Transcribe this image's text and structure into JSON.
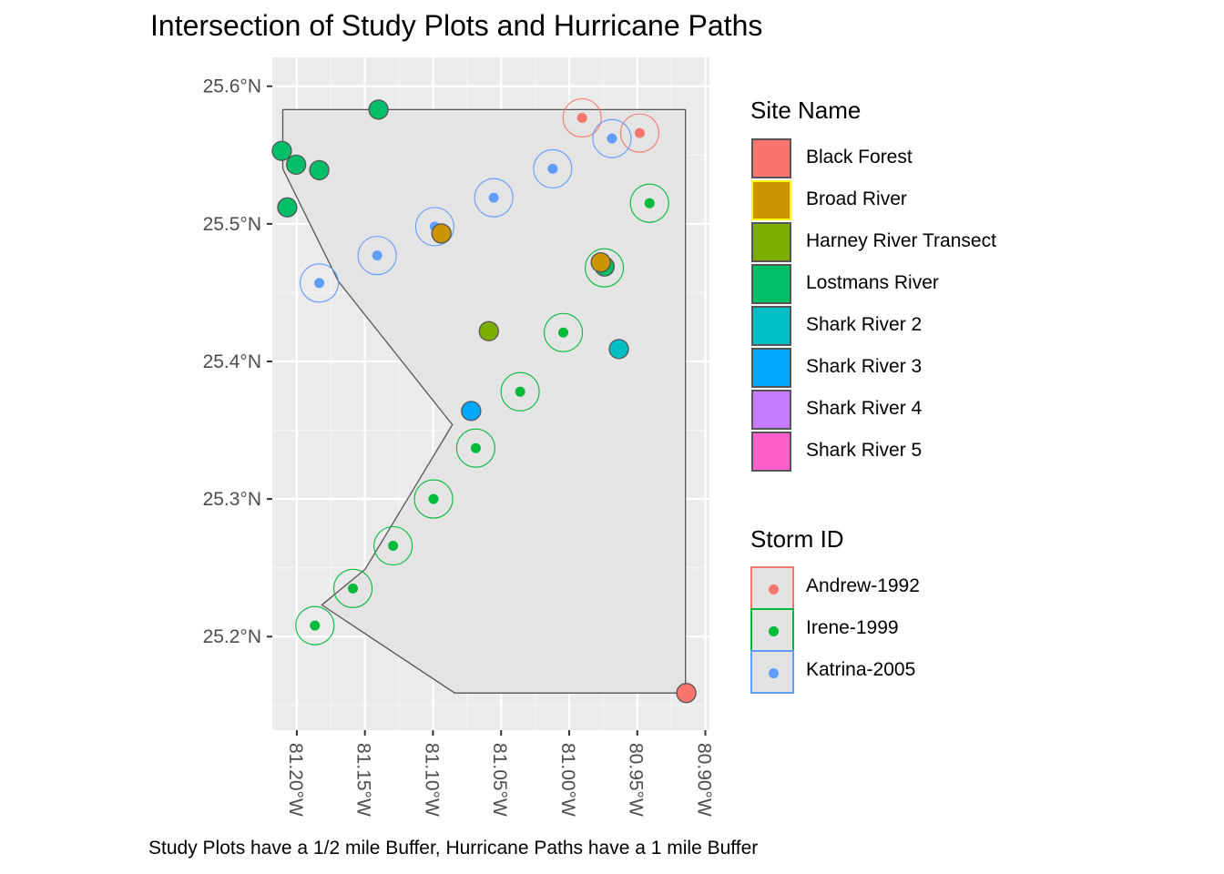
{
  "title": "Intersection of Study Plots and Hurricane Paths",
  "caption": "Study Plots have a 1/2 mile Buffer, Hurricane Paths have a 1 mile Buffer",
  "axes": {
    "x_ticks": [
      "81.20°W",
      "81.15°W",
      "81.10°W",
      "81.05°W",
      "81.00°W",
      "80.95°W",
      "80.90°W"
    ],
    "y_ticks": [
      "25.6°N",
      "25.5°N",
      "25.4°N",
      "25.3°N",
      "25.2°N"
    ]
  },
  "legend_site": {
    "title": "Site Name",
    "items": [
      {
        "label": "Black Forest",
        "color": "#F8766D"
      },
      {
        "label": "Broad River",
        "color": "#CD9600"
      },
      {
        "label": "Harney River Transect",
        "color": "#7CAE00"
      },
      {
        "label": "Lostmans River",
        "color": "#00BE67"
      },
      {
        "label": "Shark River 2",
        "color": "#00BFC4"
      },
      {
        "label": "Shark River 3",
        "color": "#00A9FF"
      },
      {
        "label": "Shark River 4",
        "color": "#C77CFF"
      },
      {
        "label": "Shark River 5",
        "color": "#FF61CC"
      }
    ]
  },
  "legend_storm": {
    "title": "Storm ID",
    "items": [
      {
        "label": "Andrew-1992",
        "color": "#F8766D"
      },
      {
        "label": "Irene-1999",
        "color": "#00BA38"
      },
      {
        "label": "Katrina-2005",
        "color": "#619CFF"
      }
    ]
  },
  "chart_data": {
    "type": "map",
    "xlim": [
      -81.218,
      -80.897
    ],
    "ylim": [
      25.132,
      25.621
    ],
    "grid": true,
    "region_polygon": [
      [
        -81.2103,
        25.583
      ],
      [
        -80.9146,
        25.583
      ],
      [
        -80.9146,
        25.159
      ],
      [
        -81.0841,
        25.159
      ],
      [
        -81.1816,
        25.223
      ],
      [
        -81.1498,
        25.249
      ],
      [
        -81.0858,
        25.354
      ],
      [
        -81.1694,
        25.458
      ],
      [
        -81.2103,
        25.54
      ]
    ],
    "storm_points": [
      {
        "storm": "Andrew-1992",
        "lon": -80.9905,
        "lat": 25.577
      },
      {
        "storm": "Andrew-1992",
        "lon": -80.9482,
        "lat": 25.566
      },
      {
        "storm": "Katrina-2005",
        "lon": -80.9686,
        "lat": 25.562
      },
      {
        "storm": "Katrina-2005",
        "lon": -81.0121,
        "lat": 25.54
      },
      {
        "storm": "Katrina-2005",
        "lon": -81.0554,
        "lat": 25.519
      },
      {
        "storm": "Katrina-2005",
        "lon": -81.0987,
        "lat": 25.498
      },
      {
        "storm": "Katrina-2005",
        "lon": -81.141,
        "lat": 25.477
      },
      {
        "storm": "Katrina-2005",
        "lon": -81.1835,
        "lat": 25.457
      },
      {
        "storm": "Irene-1999",
        "lon": -80.941,
        "lat": 25.515
      },
      {
        "storm": "Irene-1999",
        "lon": -80.9742,
        "lat": 25.468
      },
      {
        "storm": "Irene-1999",
        "lon": -81.0043,
        "lat": 25.421
      },
      {
        "storm": "Irene-1999",
        "lon": -81.036,
        "lat": 25.378
      },
      {
        "storm": "Irene-1999",
        "lon": -81.0686,
        "lat": 25.337
      },
      {
        "storm": "Irene-1999",
        "lon": -81.0996,
        "lat": 25.3
      },
      {
        "storm": "Irene-1999",
        "lon": -81.1293,
        "lat": 25.266
      },
      {
        "storm": "Irene-1999",
        "lon": -81.1588,
        "lat": 25.235
      },
      {
        "storm": "Irene-1999",
        "lon": -81.1867,
        "lat": 25.208
      }
    ],
    "site_points": [
      {
        "site": "Lostmans River",
        "lon": -81.14,
        "lat": 25.583
      },
      {
        "site": "Lostmans River",
        "lon": -81.211,
        "lat": 25.553
      },
      {
        "site": "Lostmans River",
        "lon": -81.2005,
        "lat": 25.543
      },
      {
        "site": "Lostmans River",
        "lon": -81.1835,
        "lat": 25.539
      },
      {
        "site": "Lostmans River",
        "lon": -81.207,
        "lat": 25.512
      },
      {
        "site": "Lostmans River",
        "lon": -80.974,
        "lat": 25.469
      },
      {
        "site": "Broad River",
        "lon": -81.0938,
        "lat": 25.493
      },
      {
        "site": "Broad River",
        "lon": -80.9768,
        "lat": 25.472
      },
      {
        "site": "Harney River Transect",
        "lon": -81.059,
        "lat": 25.422
      },
      {
        "site": "Shark River 2",
        "lon": -80.9635,
        "lat": 25.409
      },
      {
        "site": "Shark River 3",
        "lon": -81.072,
        "lat": 25.364
      },
      {
        "site": "Black Forest",
        "lon": -80.914,
        "lat": 25.159
      }
    ]
  }
}
